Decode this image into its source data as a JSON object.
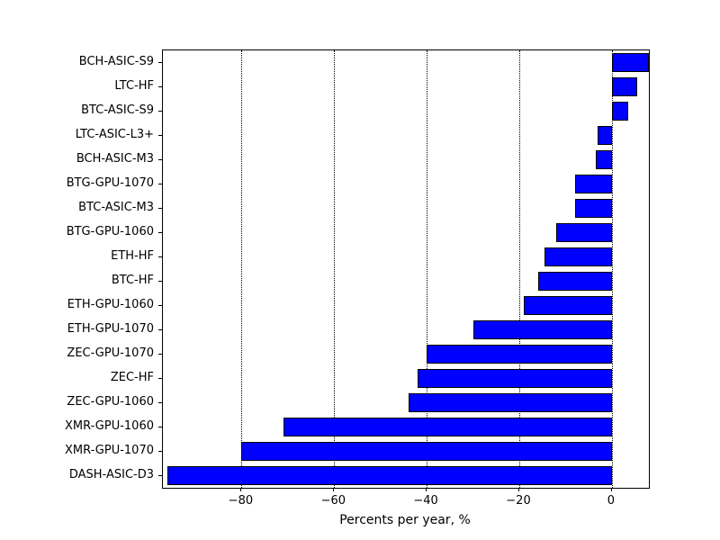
{
  "chart_data": {
    "type": "bar",
    "orientation": "horizontal",
    "title": "",
    "xlabel": "Percents per year, %",
    "ylabel": "",
    "categories": [
      "BCH-ASIC-S9",
      "LTC-HF",
      "BTC-ASIC-S9",
      "LTC-ASIC-L3+",
      "BCH-ASIC-M3",
      "BTG-GPU-1070",
      "BTC-ASIC-M3",
      "BTG-GPU-1060",
      "ETH-HF",
      "BTC-HF",
      "ETH-GPU-1060",
      "ETH-GPU-1070",
      "ZEC-GPU-1070",
      "ZEC-HF",
      "ZEC-GPU-1060",
      "XMR-GPU-1060",
      "XMR-GPU-1070",
      "DASH-ASIC-D3"
    ],
    "values": [
      8,
      5.5,
      3.5,
      -3,
      -3.5,
      -8,
      -8,
      -12,
      -14.5,
      -16,
      -19,
      -30,
      -40,
      -42,
      -44,
      -71,
      -80,
      -96
    ],
    "xlim": [
      -97,
      8
    ],
    "xticks": [
      -80,
      -60,
      -40,
      -20,
      0
    ],
    "xtick_labels": [
      "−80",
      "−60",
      "−40",
      "−20",
      "0"
    ],
    "grid": "dotted-vertical",
    "legend": "none",
    "bar_color": "#0000ff",
    "bar_edge_color": "#000000",
    "background": "#ffffff"
  }
}
